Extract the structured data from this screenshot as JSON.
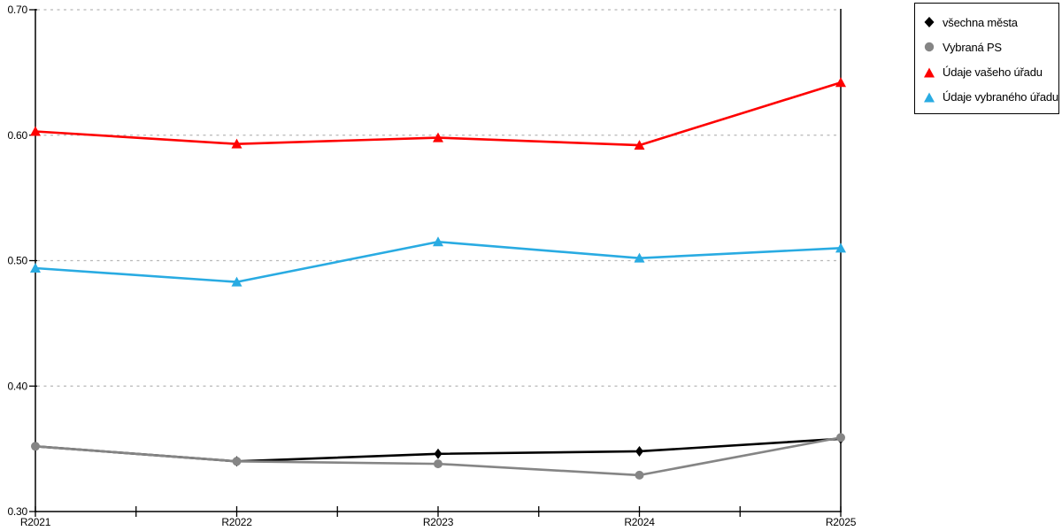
{
  "page": {
    "background": "#ffffff"
  },
  "colors": {
    "axis": "#000000",
    "gridline": "#b8b8b8",
    "legend_border": "#000000",
    "series_all_cities": "#000000",
    "series_selected_ps": "#858585",
    "series_your_office": "#fe0000",
    "series_selected_office": "#29abe2"
  },
  "chart_data": {
    "type": "line",
    "title": "",
    "xlabel": "",
    "ylabel": "",
    "x_categories": [
      "R2021",
      "R2022",
      "R2023",
      "R2024",
      "R2025"
    ],
    "ylim": [
      0.3,
      0.7
    ],
    "yticks": [
      0.3,
      0.4,
      0.5,
      0.6,
      0.7
    ],
    "ytick_labels": [
      "0.30",
      "0.40",
      "0.50",
      "0.60",
      "0.70"
    ],
    "grid": "horizontal dotted, at 0.40/0.50/0.60/0.70",
    "legend_position": "outside top-right, boxed",
    "series": [
      {
        "name": "všechna města",
        "marker": "diamond",
        "color": "#000000",
        "values": [
          0.352,
          0.34,
          0.346,
          0.348,
          0.358
        ]
      },
      {
        "name": "Vybraná PS",
        "marker": "circle",
        "color": "#858585",
        "values": [
          0.352,
          0.34,
          0.338,
          0.329,
          0.359
        ]
      },
      {
        "name": "Údaje vašeho úřadu",
        "marker": "triangle",
        "color": "#fe0000",
        "values": [
          0.603,
          0.593,
          0.598,
          0.592,
          0.642
        ]
      },
      {
        "name": "Údaje vybraného úřadu",
        "marker": "triangle",
        "color": "#29abe2",
        "values": [
          0.494,
          0.483,
          0.515,
          0.502,
          0.51
        ]
      }
    ]
  }
}
